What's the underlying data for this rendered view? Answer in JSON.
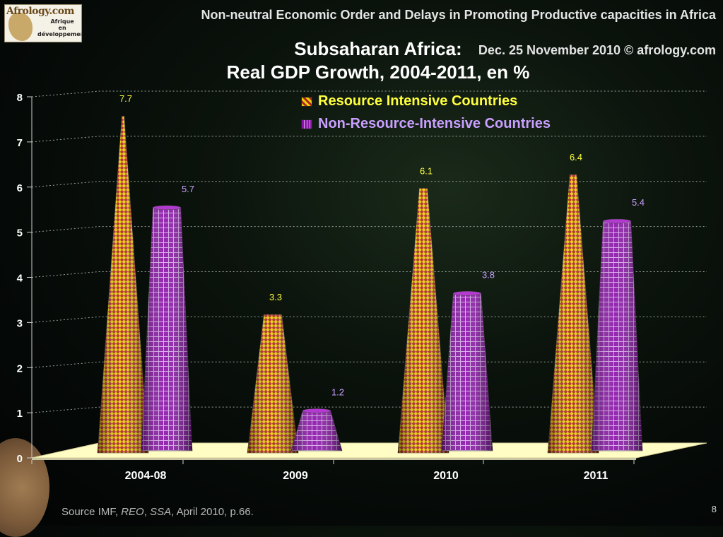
{
  "header": {
    "logo_brand": "Afrology.com",
    "logo_tagline": [
      "Afrique",
      "en",
      "développement"
    ],
    "title": "Non-neutral Economic Order and Delays in Promoting Productive capacities in Africa",
    "date_credit": "Dec. 25 November 2010  © afrology.com"
  },
  "footer": {
    "source_prefix": "Source IMF, ",
    "source_reo": "REO",
    "source_sep": ", ",
    "source_ssa": "SSA",
    "source_suffix": ", April 2010, p.66.",
    "page_number": "8"
  },
  "colors": {
    "resource_primary": "#e8d000",
    "resource_secondary": "#b0202a",
    "nonresource_primary": "#8a14a8",
    "nonresource_grid": "#d9a7ec",
    "resource_label": "#ffff3c",
    "nonresource_label": "#c9a0ff"
  },
  "chart_data": {
    "type": "bar",
    "title": "Subsaharan Africa:",
    "subtitle": "Real GDP Growth, 2004-2011, en %",
    "categories": [
      "2004-08",
      "2009",
      "2010",
      "2011"
    ],
    "series": [
      {
        "name": "Resource Intensive Countries",
        "values": [
          7.7,
          3.3,
          6.1,
          6.4
        ]
      },
      {
        "name": "Non-Resource-Intensive Countries",
        "values": [
          5.7,
          1.2,
          3.8,
          5.4
        ]
      }
    ],
    "data_labels": [
      [
        "7.7",
        "3.3",
        "6.1",
        "6.4"
      ],
      [
        "5.7",
        "1.2",
        "3.8",
        "5.4"
      ]
    ],
    "yticks": [
      "0",
      "1",
      "2",
      "3",
      "4",
      "5",
      "6",
      "7",
      "8"
    ],
    "ylim": [
      0,
      8
    ],
    "grid": true,
    "legend_position": "top-center"
  }
}
